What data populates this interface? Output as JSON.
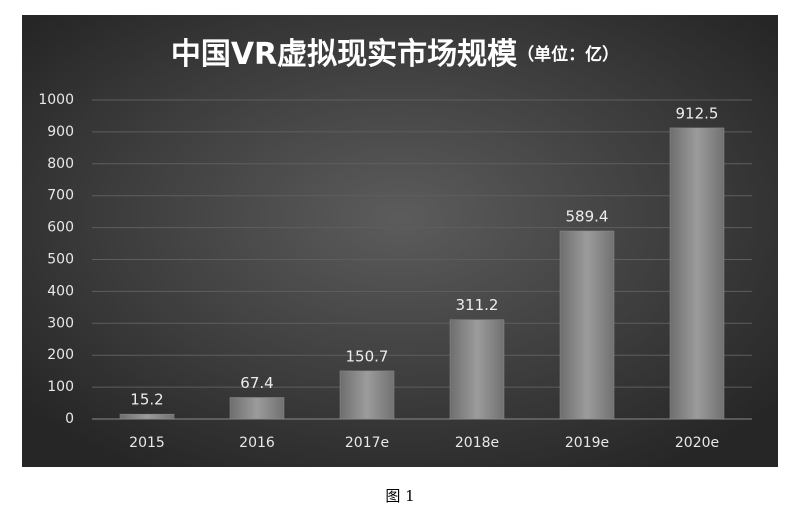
{
  "chart_data": {
    "type": "bar",
    "title": "中国VR虚拟现实市场规模",
    "subtitle": "（单位：亿）",
    "categories": [
      "2015",
      "2016",
      "2017e",
      "2018e",
      "2019e",
      "2020e"
    ],
    "values": [
      15.2,
      67.4,
      150.7,
      311.2,
      589.4,
      912.5
    ],
    "color": "#8e8e8e",
    "ylim": [
      0,
      1000
    ],
    "yticks": [
      0,
      100,
      200,
      300,
      400,
      500,
      600,
      700,
      800,
      900,
      1000
    ],
    "grid": true
  },
  "caption": "图 1"
}
